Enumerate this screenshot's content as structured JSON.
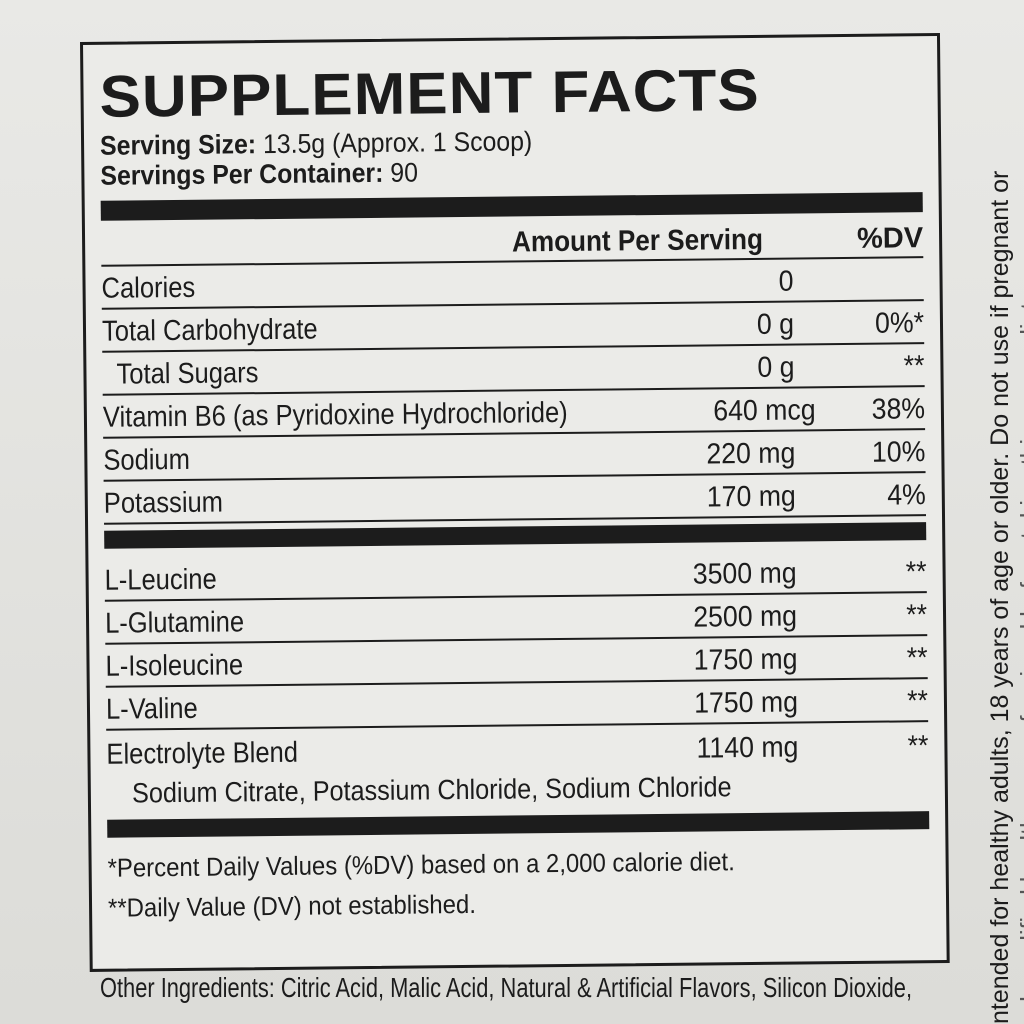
{
  "title": "SUPPLEMENT FACTS",
  "serving_size_label": "Serving Size:",
  "serving_size": "13.5g (Approx. 1 Scoop)",
  "servings_label": "Servings Per Container:",
  "servings": "90",
  "header": {
    "amount": "Amount Per Serving",
    "dv": "%DV"
  },
  "rows1": [
    {
      "name": "Calories",
      "amount": "0",
      "dv": ""
    },
    {
      "name": "Total Carbohydrate",
      "amount": "0 g",
      "dv": "0%*"
    },
    {
      "name": "Total Sugars",
      "amount": "0 g",
      "dv": "**"
    },
    {
      "name": "Vitamin B6 (as Pyridoxine Hydrochloride)",
      "amount": "640 mcg",
      "dv": "38%"
    },
    {
      "name": "Sodium",
      "amount": "220 mg",
      "dv": "10%"
    },
    {
      "name": "Potassium",
      "amount": "170 mg",
      "dv": "4%"
    }
  ],
  "rows2": [
    {
      "name": "L-Leucine",
      "amount": "3500 mg",
      "dv": "**"
    },
    {
      "name": "L-Glutamine",
      "amount": "2500 mg",
      "dv": "**"
    },
    {
      "name": "L-Isoleucine",
      "amount": "1750 mg",
      "dv": "**"
    },
    {
      "name": "L-Valine",
      "amount": "1750 mg",
      "dv": "**"
    },
    {
      "name": "Electrolyte Blend",
      "amount": "1140 mg",
      "dv": "**"
    }
  ],
  "blend_components": "Sodium Citrate, Potassium Chloride, Sodium Chloride",
  "footnote1": "*Percent Daily Values (%DV) based on a 2,000 calorie diet.",
  "footnote2": "**Daily Value (DV) not established.",
  "other_ingredients": "Other Ingredients: Citric Acid, Malic Acid, Natural & Artificial Flavors, Silicon Dioxide,",
  "side_text_1": "ntended for healthy adults, 18 years of age or older. Do not use if pregnant or",
  "side_text_2": "ed, qualified healthcare professional before taking this or any dietary"
}
